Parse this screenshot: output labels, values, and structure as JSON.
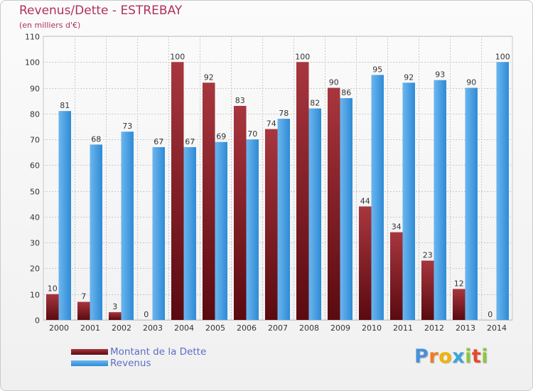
{
  "header": {
    "title": "Revenus/Dette - ESTREBAY",
    "subtitle": "(en milliers d'€)"
  },
  "logo": {
    "letters": [
      "P",
      "r",
      "o",
      "x",
      "i",
      "t",
      "i"
    ],
    "colors": [
      "#4a90d9",
      "#ee7d22",
      "#f0b400",
      "#3aa5dc",
      "#8cc63f",
      "#e6492d",
      "#8cc63f"
    ]
  },
  "legend": {
    "items": [
      {
        "label": "Montant de la Dette",
        "color": "#7a1d24"
      },
      {
        "label": "Revenus",
        "color": "#4aa0e4"
      }
    ]
  },
  "colors": {
    "debt_top": "#a8363e",
    "debt_bottom": "#5a0a10",
    "revenue_top": "#6cb6ee",
    "revenue_bottom": "#2e8bd6",
    "grid": "#c8c8c8",
    "axis_text": "#333333"
  },
  "chart_data": {
    "type": "bar",
    "title": "Revenus/Dette - ESTREBAY",
    "subtitle": "(en milliers d'€)",
    "categories": [
      "2000",
      "2001",
      "2002",
      "2003",
      "2004",
      "2005",
      "2006",
      "2007",
      "2008",
      "2009",
      "2010",
      "2011",
      "2012",
      "2013",
      "2014"
    ],
    "series": [
      {
        "name": "Montant de la Dette",
        "values": [
          10,
          7,
          3,
          0,
          100,
          92,
          83,
          74,
          100,
          90,
          44,
          34,
          23,
          12,
          0
        ]
      },
      {
        "name": "Revenus",
        "values": [
          81,
          68,
          73,
          67,
          67,
          69,
          70,
          78,
          82,
          86,
          95,
          92,
          93,
          90,
          100
        ]
      }
    ],
    "yticks": [
      0,
      10,
      20,
      30,
      40,
      50,
      60,
      70,
      80,
      90,
      100,
      110
    ],
    "ylim": [
      0,
      110
    ],
    "grid": true,
    "legend_position": "bottom-left"
  }
}
